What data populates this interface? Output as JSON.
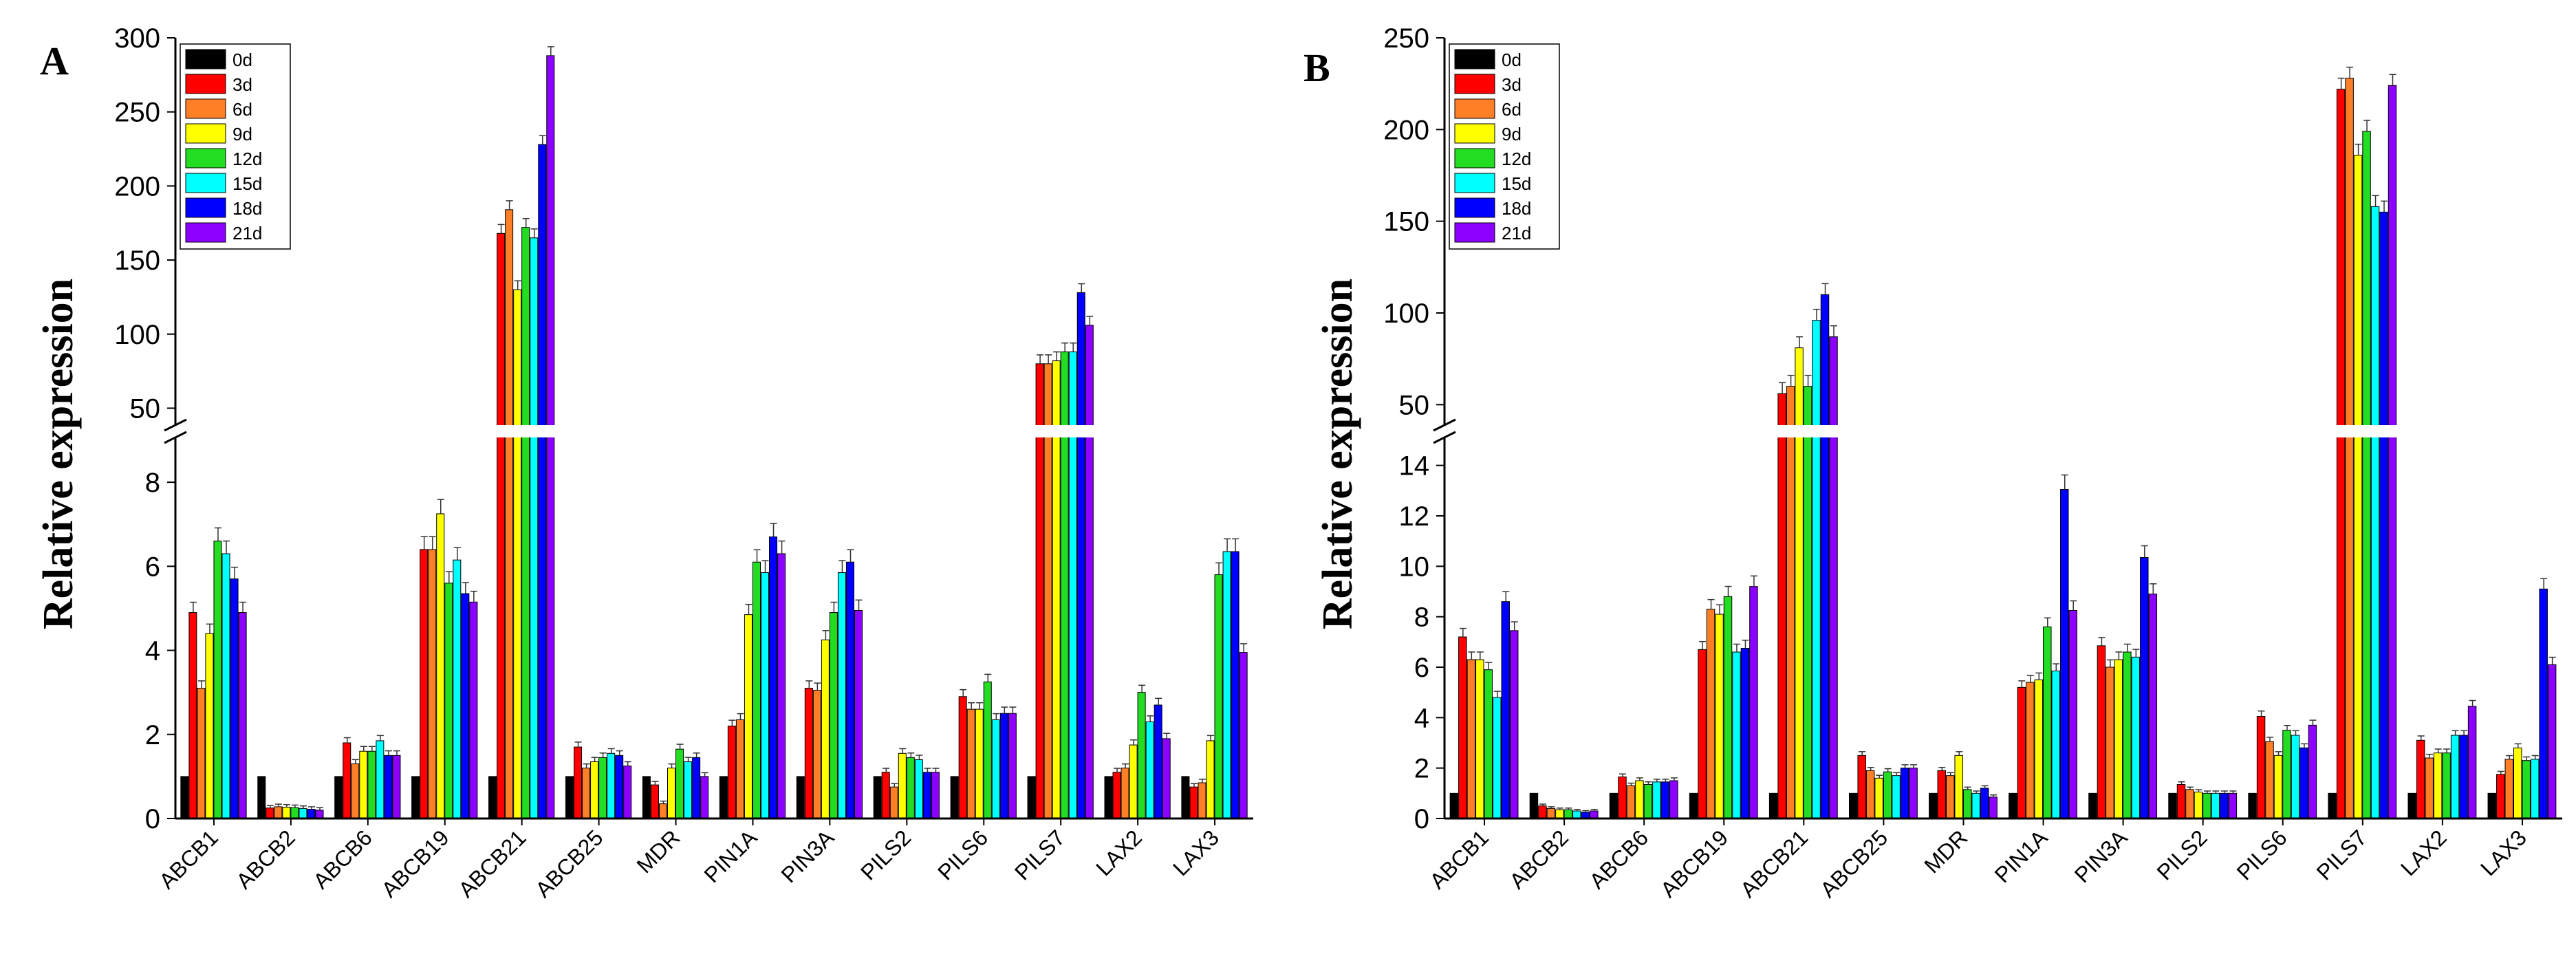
{
  "chart_data": [
    {
      "panel": "A",
      "type": "bar",
      "ylabel": "Relative expression",
      "y_break": {
        "lower_range": [
          0,
          9
        ],
        "upper_range": [
          40,
          300
        ]
      },
      "lower_ticks": [
        0,
        2,
        4,
        6,
        8
      ],
      "upper_ticks": [
        50,
        100,
        150,
        200,
        250,
        300
      ],
      "categories": [
        "ABCB1",
        "ABCB2",
        "ABCB6",
        "ABCB19",
        "ABCB21",
        "ABCB25",
        "MDR",
        "PIN1A",
        "PIN3A",
        "PILS2",
        "PILS6",
        "PILS7",
        "LAX2",
        "LAX3"
      ],
      "series": [
        {
          "name": "0d",
          "values": [
            1,
            1,
            1,
            1,
            1,
            1,
            1,
            1,
            1,
            1,
            1,
            1,
            1,
            1
          ]
        },
        {
          "name": "3d",
          "values": [
            4.9,
            0.25,
            1.8,
            6.4,
            168,
            1.7,
            0.8,
            2.2,
            3.1,
            1.1,
            2.9,
            80,
            1.1,
            0.75
          ]
        },
        {
          "name": "6d",
          "values": [
            3.1,
            0.28,
            1.3,
            6.4,
            184,
            1.2,
            0.35,
            2.35,
            3.05,
            0.75,
            2.6,
            80,
            1.2,
            0.85
          ]
        },
        {
          "name": "9d",
          "values": [
            4.4,
            0.27,
            1.6,
            7.25,
            130,
            1.35,
            1.2,
            4.85,
            4.25,
            1.55,
            2.6,
            82,
            1.75,
            1.85
          ]
        },
        {
          "name": "12d",
          "values": [
            6.6,
            0.26,
            1.6,
            5.6,
            172,
            1.45,
            1.65,
            6.1,
            4.9,
            1.45,
            3.25,
            88,
            3.0,
            5.8
          ]
        },
        {
          "name": "15d",
          "values": [
            6.3,
            0.24,
            1.85,
            6.15,
            165,
            1.55,
            1.35,
            5.85,
            5.85,
            1.4,
            2.35,
            88,
            2.3,
            6.35
          ]
        },
        {
          "name": "18d",
          "values": [
            5.7,
            0.22,
            1.5,
            5.35,
            228,
            1.5,
            1.45,
            6.7,
            6.1,
            1.1,
            2.5,
            128,
            2.7,
            6.35
          ]
        },
        {
          "name": "21d",
          "values": [
            4.9,
            0.2,
            1.5,
            5.15,
            288,
            1.25,
            1.0,
            6.3,
            4.95,
            1.1,
            2.5,
            106,
            1.9,
            3.95
          ]
        }
      ]
    },
    {
      "panel": "B",
      "type": "bar",
      "ylabel": "Relative expression",
      "y_break": {
        "lower_range": [
          0,
          15
        ],
        "upper_range": [
          40,
          250
        ]
      },
      "lower_ticks": [
        0,
        2,
        4,
        6,
        8,
        10,
        12,
        14
      ],
      "upper_ticks": [
        50,
        100,
        150,
        200,
        250
      ],
      "categories": [
        "ABCB1",
        "ABCB2",
        "ABCB6",
        "ABCB19",
        "ABCB21",
        "ABCB25",
        "MDR",
        "PIN1A",
        "PIN3A",
        "PILS2",
        "PILS6",
        "PILS7",
        "LAX2",
        "LAX3"
      ],
      "series": [
        {
          "name": "0d",
          "values": [
            1,
            1,
            1,
            1,
            1,
            1,
            1,
            1,
            1,
            1,
            1,
            1,
            1,
            1
          ]
        },
        {
          "name": "3d",
          "values": [
            7.2,
            0.5,
            1.65,
            6.7,
            56,
            2.5,
            1.9,
            5.2,
            6.85,
            1.35,
            4.05,
            222,
            3.1,
            1.75
          ]
        },
        {
          "name": "6d",
          "values": [
            6.3,
            0.4,
            1.3,
            8.3,
            60,
            1.9,
            1.7,
            5.4,
            6.0,
            1.15,
            3.05,
            228,
            2.4,
            2.35
          ]
        },
        {
          "name": "9d",
          "values": [
            6.3,
            0.35,
            1.5,
            8.1,
            81,
            1.6,
            2.5,
            5.5,
            6.3,
            1.05,
            2.5,
            186,
            2.6,
            2.8
          ]
        },
        {
          "name": "12d",
          "values": [
            5.9,
            0.35,
            1.35,
            8.8,
            60,
            1.85,
            1.15,
            7.6,
            6.6,
            1.0,
            3.5,
            199,
            2.6,
            2.3
          ]
        },
        {
          "name": "15d",
          "values": [
            4.8,
            0.3,
            1.45,
            6.6,
            96,
            1.7,
            1.0,
            5.85,
            6.4,
            1.0,
            3.3,
            158,
            3.3,
            2.35
          ]
        },
        {
          "name": "18d",
          "values": [
            8.6,
            0.25,
            1.45,
            6.75,
            110,
            2.0,
            1.2,
            13.05,
            10.35,
            1.0,
            2.8,
            155,
            3.3,
            9.1
          ]
        },
        {
          "name": "21d",
          "values": [
            7.45,
            0.3,
            1.5,
            9.2,
            87,
            2.0,
            0.85,
            8.25,
            8.9,
            1.0,
            3.7,
            224,
            4.45,
            6.1
          ]
        }
      ]
    }
  ],
  "legend": {
    "labels": [
      "0d",
      "3d",
      "6d",
      "9d",
      "12d",
      "15d",
      "18d",
      "21d"
    ],
    "colors": [
      "#000000",
      "#ff0000",
      "#ff7f27",
      "#ffff00",
      "#22dd22",
      "#00ffff",
      "#0000ff",
      "#8b00ff"
    ]
  }
}
